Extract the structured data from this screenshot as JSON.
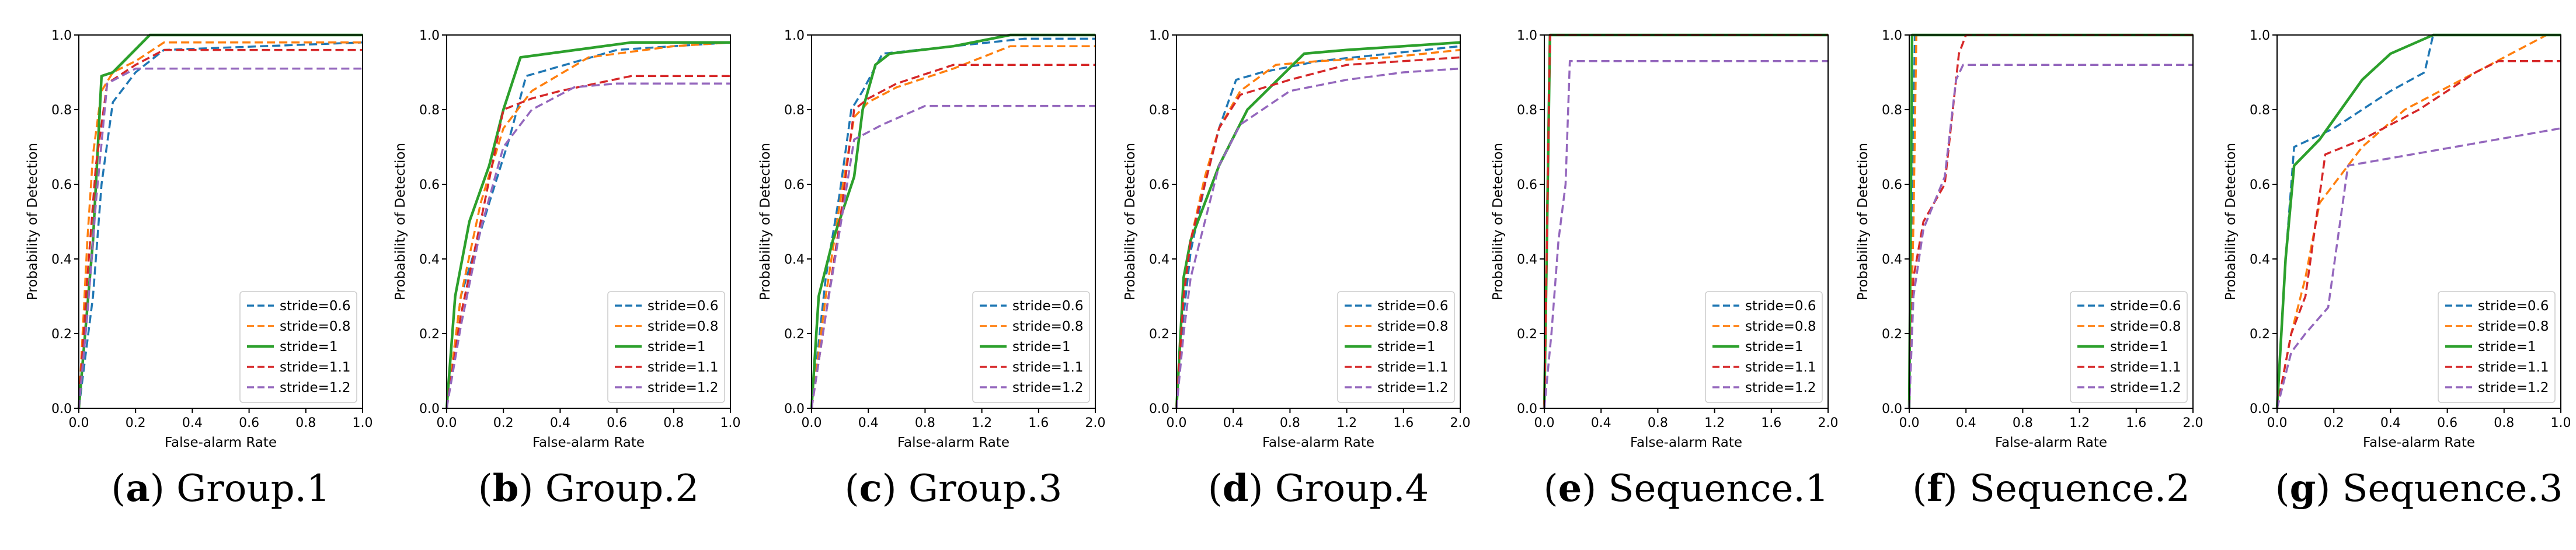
{
  "colors": {
    "stride_0_6": "#1f77b4",
    "stride_0_8": "#ff7f0e",
    "stride_1": "#2ca02c",
    "stride_1_1": "#d62728",
    "stride_1_2": "#9467bd"
  },
  "chart_data": [
    {
      "type": "line",
      "caption_letter": "(a)",
      "caption_text": " Group.1",
      "xlabel": "False-alarm Rate",
      "ylabel": "Probability of Detection",
      "xlim": [
        0,
        1.0
      ],
      "ylim": [
        0,
        1.0
      ],
      "xticks": [
        "0.0",
        "0.2",
        "0.4",
        "0.6",
        "0.8",
        "1.0"
      ],
      "yticks": [
        "0.0",
        "0.2",
        "0.4",
        "0.6",
        "0.8",
        "1.0"
      ],
      "legend_position": "bottom-right",
      "series": [
        {
          "name": "stride=0.6",
          "style": "dashed",
          "x": [
            0,
            0.05,
            0.08,
            0.12,
            0.2,
            0.3,
            1.0
          ],
          "y": [
            0,
            0.3,
            0.6,
            0.82,
            0.9,
            0.96,
            0.98
          ]
        },
        {
          "name": "stride=0.8",
          "style": "dashed",
          "x": [
            0,
            0.03,
            0.05,
            0.08,
            0.12,
            0.2,
            0.3,
            1.0
          ],
          "y": [
            0,
            0.45,
            0.68,
            0.85,
            0.9,
            0.93,
            0.98,
            0.98
          ]
        },
        {
          "name": "stride=1",
          "style": "solid",
          "x": [
            0,
            0.05,
            0.08,
            0.12,
            0.25,
            1.0
          ],
          "y": [
            0,
            0.45,
            0.89,
            0.9,
            1.0,
            1.0
          ]
        },
        {
          "name": "stride=1.1",
          "style": "dashed",
          "x": [
            0,
            0.03,
            0.06,
            0.1,
            0.2,
            0.3,
            1.0
          ],
          "y": [
            0,
            0.35,
            0.65,
            0.87,
            0.92,
            0.96,
            0.96
          ]
        },
        {
          "name": "stride=1.2",
          "style": "dashed",
          "x": [
            0,
            0.03,
            0.06,
            0.1,
            0.2,
            1.0
          ],
          "y": [
            0,
            0.25,
            0.55,
            0.87,
            0.91,
            0.91
          ]
        }
      ]
    },
    {
      "type": "line",
      "caption_letter": "(b)",
      "caption_text": " Group.2",
      "xlabel": "False-alarm Rate",
      "ylabel": "Probability of Detection",
      "xlim": [
        0,
        1.0
      ],
      "ylim": [
        0,
        1.0
      ],
      "xticks": [
        "0.0",
        "0.2",
        "0.4",
        "0.6",
        "0.8",
        "1.0"
      ],
      "yticks": [
        "0.0",
        "0.2",
        "0.4",
        "0.6",
        "0.8",
        "1.0"
      ],
      "legend_position": "bottom-right",
      "series": [
        {
          "name": "stride=0.6",
          "style": "dashed",
          "x": [
            0,
            0.05,
            0.15,
            0.22,
            0.28,
            0.6,
            1.0
          ],
          "y": [
            0,
            0.3,
            0.55,
            0.72,
            0.89,
            0.96,
            0.98
          ]
        },
        {
          "name": "stride=0.8",
          "style": "dashed",
          "x": [
            0,
            0.05,
            0.12,
            0.2,
            0.3,
            0.5,
            0.8,
            1.0
          ],
          "y": [
            0,
            0.3,
            0.55,
            0.75,
            0.85,
            0.94,
            0.97,
            0.98
          ]
        },
        {
          "name": "stride=1",
          "style": "solid",
          "x": [
            0,
            0.03,
            0.08,
            0.15,
            0.2,
            0.26,
            0.65,
            1.0
          ],
          "y": [
            0,
            0.3,
            0.5,
            0.65,
            0.8,
            0.94,
            0.98,
            0.98
          ]
        },
        {
          "name": "stride=1.1",
          "style": "dashed",
          "x": [
            0,
            0.05,
            0.12,
            0.2,
            0.3,
            0.4,
            0.65,
            1.0
          ],
          "y": [
            0,
            0.25,
            0.5,
            0.8,
            0.83,
            0.85,
            0.89,
            0.89
          ]
        },
        {
          "name": "stride=1.2",
          "style": "dashed",
          "x": [
            0,
            0.05,
            0.12,
            0.2,
            0.3,
            0.45,
            0.6,
            1.0
          ],
          "y": [
            0,
            0.22,
            0.48,
            0.7,
            0.8,
            0.86,
            0.87,
            0.87
          ]
        }
      ]
    },
    {
      "type": "line",
      "caption_letter": "(c)",
      "caption_text": " Group.3",
      "xlabel": "False-alarm Rate",
      "ylabel": "Probability of Detection",
      "xlim": [
        0,
        2.0
      ],
      "ylim": [
        0,
        1.0
      ],
      "xticks": [
        "0.0",
        "0.4",
        "0.8",
        "1.2",
        "1.6",
        "2.0"
      ],
      "yticks": [
        "0.0",
        "0.2",
        "0.4",
        "0.6",
        "0.8",
        "1.0"
      ],
      "legend_position": "bottom-right",
      "series": [
        {
          "name": "stride=0.6",
          "style": "dashed",
          "x": [
            0,
            0.1,
            0.2,
            0.28,
            0.36,
            0.5,
            1.0,
            1.5,
            2.0
          ],
          "y": [
            0,
            0.35,
            0.58,
            0.8,
            0.85,
            0.95,
            0.97,
            0.99,
            0.99
          ]
        },
        {
          "name": "stride=0.8",
          "style": "dashed",
          "x": [
            0,
            0.1,
            0.2,
            0.3,
            0.4,
            0.6,
            1.0,
            1.4,
            2.0
          ],
          "y": [
            0,
            0.3,
            0.55,
            0.78,
            0.82,
            0.86,
            0.91,
            0.97,
            0.97
          ]
        },
        {
          "name": "stride=1",
          "style": "solid",
          "x": [
            0,
            0.05,
            0.15,
            0.3,
            0.36,
            0.45,
            0.55,
            1.0,
            1.4,
            2.0
          ],
          "y": [
            0,
            0.3,
            0.45,
            0.62,
            0.8,
            0.92,
            0.95,
            0.97,
            1.0,
            1.0
          ]
        },
        {
          "name": "stride=1.1",
          "style": "dashed",
          "x": [
            0,
            0.1,
            0.2,
            0.3,
            0.4,
            0.6,
            1.0,
            2.0
          ],
          "y": [
            0,
            0.25,
            0.5,
            0.8,
            0.83,
            0.87,
            0.92,
            0.92
          ]
        },
        {
          "name": "stride=1.2",
          "style": "dashed",
          "x": [
            0,
            0.1,
            0.2,
            0.3,
            0.5,
            0.8,
            2.0
          ],
          "y": [
            0,
            0.25,
            0.48,
            0.72,
            0.76,
            0.81,
            0.81
          ]
        }
      ]
    },
    {
      "type": "line",
      "caption_letter": "(d)",
      "caption_text": " Group.4",
      "xlabel": "False-alarm Rate",
      "ylabel": "Probability of Detection",
      "xlim": [
        0,
        2.0
      ],
      "ylim": [
        0,
        1.0
      ],
      "xticks": [
        "0.0",
        "0.4",
        "0.8",
        "1.2",
        "1.6",
        "2.0"
      ],
      "yticks": [
        "0.0",
        "0.2",
        "0.4",
        "0.6",
        "0.8",
        "1.0"
      ],
      "legend_position": "bottom-right",
      "series": [
        {
          "name": "stride=0.6",
          "style": "dashed",
          "x": [
            0,
            0.05,
            0.1,
            0.2,
            0.3,
            0.42,
            0.6,
            1.0,
            1.5,
            2.0
          ],
          "y": [
            0,
            0.25,
            0.42,
            0.6,
            0.75,
            0.88,
            0.9,
            0.93,
            0.95,
            0.97
          ]
        },
        {
          "name": "stride=0.8",
          "style": "dashed",
          "x": [
            0,
            0.05,
            0.1,
            0.2,
            0.3,
            0.45,
            0.7,
            1.0,
            1.5,
            2.0
          ],
          "y": [
            0,
            0.3,
            0.45,
            0.62,
            0.75,
            0.85,
            0.92,
            0.93,
            0.94,
            0.96
          ]
        },
        {
          "name": "stride=1",
          "style": "solid",
          "x": [
            0,
            0.05,
            0.1,
            0.2,
            0.3,
            0.5,
            0.9,
            1.2,
            1.6,
            2.0
          ],
          "y": [
            0,
            0.35,
            0.45,
            0.55,
            0.65,
            0.8,
            0.95,
            0.96,
            0.97,
            0.98
          ]
        },
        {
          "name": "stride=1.1",
          "style": "dashed",
          "x": [
            0,
            0.05,
            0.1,
            0.2,
            0.3,
            0.45,
            0.8,
            1.2,
            1.6,
            2.0
          ],
          "y": [
            0,
            0.3,
            0.45,
            0.6,
            0.75,
            0.84,
            0.88,
            0.92,
            0.93,
            0.94
          ]
        },
        {
          "name": "stride=1.2",
          "style": "dashed",
          "x": [
            0,
            0.05,
            0.1,
            0.2,
            0.3,
            0.45,
            0.8,
            1.2,
            1.6,
            2.0
          ],
          "y": [
            0,
            0.2,
            0.35,
            0.5,
            0.65,
            0.76,
            0.85,
            0.88,
            0.9,
            0.91
          ]
        }
      ]
    },
    {
      "type": "line",
      "caption_letter": "(e)",
      "caption_text": " Sequence.1",
      "xlabel": "False-alarm Rate",
      "ylabel": "Probability of Detection",
      "xlim": [
        0,
        2.0
      ],
      "ylim": [
        0,
        1.0
      ],
      "xticks": [
        "0.0",
        "0.4",
        "0.8",
        "1.2",
        "1.6",
        "2.0"
      ],
      "yticks": [
        "0.0",
        "0.2",
        "0.4",
        "0.6",
        "0.8",
        "1.0"
      ],
      "legend_position": "bottom-right",
      "series": [
        {
          "name": "stride=0.6",
          "style": "dashed",
          "x": [
            0,
            0.02,
            0.04,
            2.0
          ],
          "y": [
            0,
            0.5,
            1.0,
            1.0
          ]
        },
        {
          "name": "stride=0.8",
          "style": "dashed",
          "x": [
            0,
            0.02,
            0.04,
            2.0
          ],
          "y": [
            0,
            0.5,
            1.0,
            1.0
          ]
        },
        {
          "name": "stride=1",
          "style": "solid",
          "x": [
            0,
            0.02,
            0.04,
            2.0
          ],
          "y": [
            0,
            0.5,
            1.0,
            1.0
          ]
        },
        {
          "name": "stride=1.1",
          "style": "dashed",
          "x": [
            0,
            0.02,
            0.04,
            2.0
          ],
          "y": [
            0,
            0.5,
            1.0,
            1.0
          ]
        },
        {
          "name": "stride=1.2",
          "style": "dashed",
          "x": [
            0,
            0.05,
            0.1,
            0.15,
            0.18,
            2.0
          ],
          "y": [
            0,
            0.2,
            0.45,
            0.6,
            0.93,
            0.93
          ]
        }
      ]
    },
    {
      "type": "line",
      "caption_letter": "(f)",
      "caption_text": " Sequence.2",
      "xlabel": "False-alarm Rate",
      "ylabel": "Probability of Detection",
      "xlim": [
        0,
        2.0
      ],
      "ylim": [
        0,
        1.0
      ],
      "xticks": [
        "0.0",
        "0.4",
        "0.8",
        "1.2",
        "1.6",
        "2.0"
      ],
      "yticks": [
        "0.0",
        "0.2",
        "0.4",
        "0.6",
        "0.8",
        "1.0"
      ],
      "legend_position": "bottom-right",
      "series": [
        {
          "name": "stride=0.6",
          "style": "dashed",
          "x": [
            0,
            0.02,
            0.04,
            2.0
          ],
          "y": [
            0,
            0.5,
            1.0,
            1.0
          ]
        },
        {
          "name": "stride=0.8",
          "style": "dashed",
          "x": [
            0,
            0.03,
            0.05,
            2.0
          ],
          "y": [
            0,
            0.5,
            1.0,
            1.0
          ]
        },
        {
          "name": "stride=1",
          "style": "solid",
          "x": [
            0,
            0.01,
            0.02,
            2.0
          ],
          "y": [
            0,
            0.5,
            1.0,
            1.0
          ]
        },
        {
          "name": "stride=1.1",
          "style": "dashed",
          "x": [
            0,
            0.03,
            0.1,
            0.25,
            0.35,
            0.4,
            2.0
          ],
          "y": [
            0,
            0.35,
            0.5,
            0.6,
            0.95,
            1.0,
            1.0
          ]
        },
        {
          "name": "stride=1.2",
          "style": "dashed",
          "x": [
            0,
            0.03,
            0.1,
            0.25,
            0.33,
            0.38,
            2.0
          ],
          "y": [
            0,
            0.3,
            0.48,
            0.62,
            0.88,
            0.92,
            0.92
          ]
        }
      ]
    },
    {
      "type": "line",
      "caption_letter": "(g)",
      "caption_text": " Sequence.3",
      "xlabel": "False-alarm Rate",
      "ylabel": "Probability of Detection",
      "xlim": [
        0,
        1.0
      ],
      "ylim": [
        0,
        1.0
      ],
      "xticks": [
        "0.0",
        "0.2",
        "0.4",
        "0.6",
        "0.8",
        "1.0"
      ],
      "yticks": [
        "0.0",
        "0.2",
        "0.4",
        "0.6",
        "0.8",
        "1.0"
      ],
      "legend_position": "bottom-right",
      "series": [
        {
          "name": "stride=0.6",
          "style": "dashed",
          "x": [
            0,
            0.03,
            0.06,
            0.2,
            0.4,
            0.52,
            0.55
          ],
          "y": [
            0,
            0.4,
            0.7,
            0.75,
            0.85,
            0.9,
            1.0
          ]
        },
        {
          "name": "stride=0.8",
          "style": "dashed",
          "x": [
            0,
            0.05,
            0.1,
            0.15,
            0.3,
            0.45,
            0.7,
            0.95
          ],
          "y": [
            0,
            0.2,
            0.35,
            0.55,
            0.7,
            0.8,
            0.9,
            1.0
          ]
        },
        {
          "name": "stride=1",
          "style": "solid",
          "x": [
            0,
            0.03,
            0.06,
            0.15,
            0.3,
            0.4,
            0.55,
            1.0
          ],
          "y": [
            0,
            0.4,
            0.65,
            0.72,
            0.88,
            0.95,
            1.0,
            1.0
          ]
        },
        {
          "name": "stride=1.1",
          "style": "dashed",
          "x": [
            0,
            0.05,
            0.1,
            0.17,
            0.3,
            0.5,
            0.7,
            0.78,
            1.0
          ],
          "y": [
            0,
            0.2,
            0.3,
            0.68,
            0.72,
            0.8,
            0.9,
            0.93,
            0.93
          ]
        },
        {
          "name": "stride=1.2",
          "style": "dashed",
          "x": [
            0,
            0.05,
            0.1,
            0.18,
            0.25,
            0.4,
            0.7,
            1.0
          ],
          "y": [
            0,
            0.15,
            0.2,
            0.27,
            0.65,
            0.67,
            0.71,
            0.75
          ]
        }
      ]
    }
  ]
}
